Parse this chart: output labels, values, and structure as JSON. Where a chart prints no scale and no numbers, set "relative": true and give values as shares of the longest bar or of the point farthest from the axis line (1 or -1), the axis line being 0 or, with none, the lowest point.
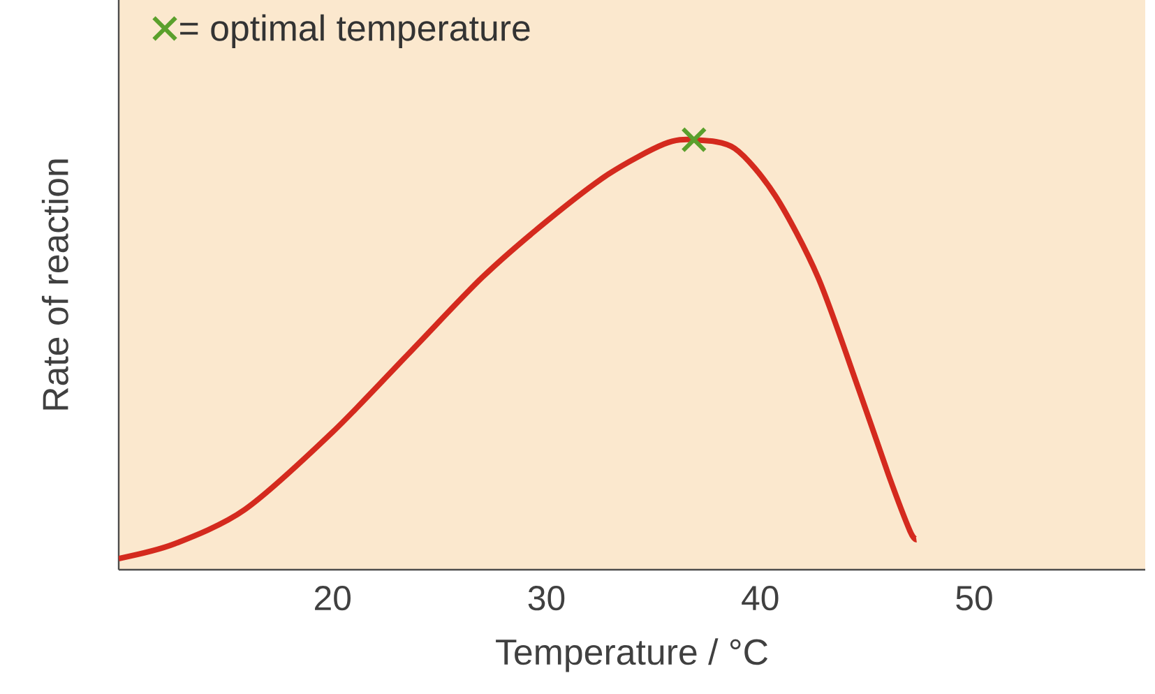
{
  "chart_data": {
    "type": "line",
    "xlabel": "Temperature / °C",
    "ylabel": "Rate of reaction",
    "xlim": [
      10,
      58
    ],
    "xticks": [
      20,
      30,
      40,
      50
    ],
    "relative": true,
    "legend": "top left",
    "series": [
      {
        "color": "#d42a1e",
        "marker": "none",
        "x": [
          10,
          12.6,
          15.9,
          20,
          23.7,
          27,
          30,
          32.9,
          35.5,
          36.9,
          38.8,
          40.7,
          42.7,
          44.6,
          46,
          47,
          47.3
        ],
        "values": [
          0.026,
          0.06,
          0.14,
          0.32,
          0.51,
          0.68,
          0.81,
          0.92,
          0.99,
          1.0,
          0.98,
          0.87,
          0.68,
          0.42,
          0.22,
          0.09,
          0.07
        ]
      },
      {
        "type": "scatter",
        "name": "= optimal temperature",
        "color": "#5aa02c",
        "marker": "cross",
        "x": [
          36.9
        ],
        "values": [
          1.0
        ]
      }
    ]
  }
}
